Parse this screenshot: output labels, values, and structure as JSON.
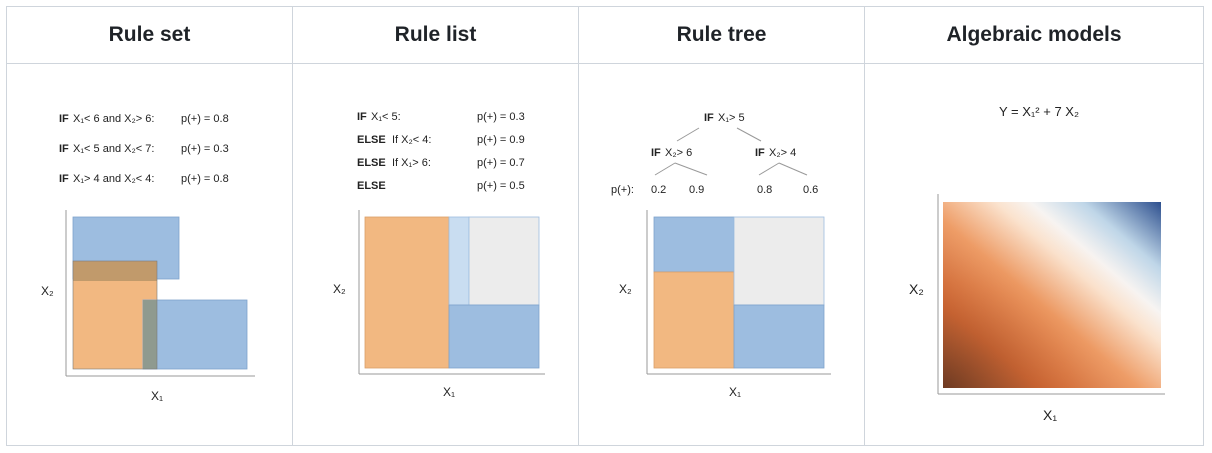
{
  "headers": {
    "col1": "Rule set",
    "col2": "Rule list",
    "col3": "Rule tree",
    "col4": "Algebraic models"
  },
  "rule_set": {
    "rules": [
      {
        "kw": "IF",
        "cond": "X₁< 6 and X₂> 6:",
        "prob": "p(+) = 0.8"
      },
      {
        "kw": "IF",
        "cond": "X₁< 5 and X₂< 7:",
        "prob": "p(+) = 0.3"
      },
      {
        "kw": "IF",
        "cond": "X₁> 4 and X₂< 4:",
        "prob": "p(+) = 0.8"
      }
    ],
    "xlabel": "X₁",
    "ylabel": "X₂"
  },
  "rule_list": {
    "rules": [
      {
        "kw": "IF",
        "cond": "X₁< 5:",
        "prob": "p(+) = 0.3"
      },
      {
        "kw": "ELSE",
        "cond": "If X₂< 4:",
        "prob": "p(+) = 0.9"
      },
      {
        "kw": "ELSE",
        "cond": "If X₁> 6:",
        "prob": "p(+) = 0.7"
      },
      {
        "kw": "ELSE",
        "cond": "",
        "prob": "p(+) = 0.5"
      }
    ],
    "xlabel": "X₁",
    "ylabel": "X₂"
  },
  "rule_tree": {
    "root": {
      "kw": "IF",
      "cond": "X₁> 5"
    },
    "left": {
      "kw": "IF",
      "cond": "X₂> 6"
    },
    "right": {
      "kw": "IF",
      "cond": "X₂> 4"
    },
    "prob_label": "p(+):",
    "leaves": [
      "0.2",
      "0.9",
      "0.8",
      "0.6"
    ],
    "xlabel": "X₁",
    "ylabel": "X₂"
  },
  "algebraic": {
    "equation": "Y = X₁² + 7 X₂",
    "xlabel": "X₁",
    "ylabel": "X₂"
  },
  "colors": {
    "blue": "#9dbde0",
    "orange": "#f2b881",
    "overlap": "#c19a6b",
    "gray_overlap": "#8f9a8f",
    "light_gray": "#ececec",
    "light_blue": "#c9ddf1",
    "grid_border": "#cfd5dc"
  }
}
